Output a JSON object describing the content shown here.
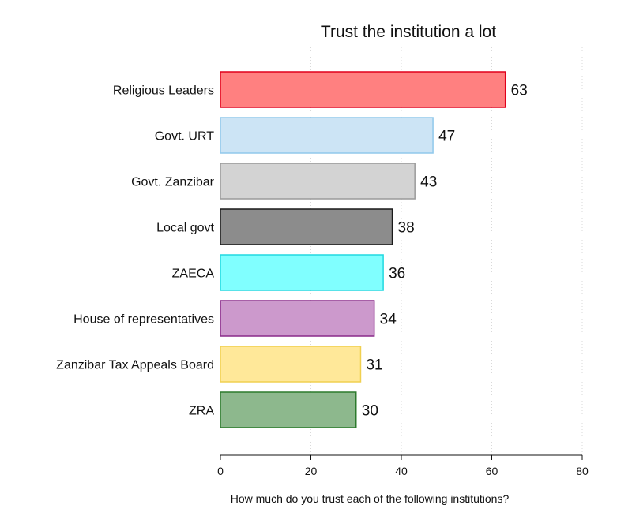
{
  "chart_data": {
    "type": "bar",
    "orientation": "horizontal",
    "title": "Trust the institution a lot",
    "xlabel": "How much do you trust each of the following institutions?",
    "ylabel": "",
    "xlim": [
      0,
      80
    ],
    "ticks": [
      0,
      20,
      40,
      60,
      80
    ],
    "tick_labels": [
      "0",
      "20",
      "40",
      "60",
      "80"
    ],
    "grid": true,
    "categories": [
      "Religious Leaders",
      "Govt. URT",
      "Govt. Zanzibar",
      "Local govt",
      "ZAECA",
      "House of representatives",
      "Zanzibar Tax Appeals Board",
      "ZRA"
    ],
    "values": [
      63,
      47,
      43,
      38,
      36,
      34,
      31,
      30
    ],
    "value_labels": [
      "63",
      "47",
      "43",
      "38",
      "36",
      "34",
      "31",
      "30"
    ],
    "bar_fill_colors": [
      "#ff8080",
      "#cce4f5",
      "#d3d3d3",
      "#8c8c8c",
      "#80ffff",
      "#cc99cc",
      "#ffe899",
      "#8db88d"
    ],
    "bar_edge_colors": [
      "#e0001b",
      "#90c8ec",
      "#9a9a9a",
      "#1a1a1a",
      "#20d8e0",
      "#8a2a8a",
      "#f0d050",
      "#2c7a2c"
    ]
  }
}
